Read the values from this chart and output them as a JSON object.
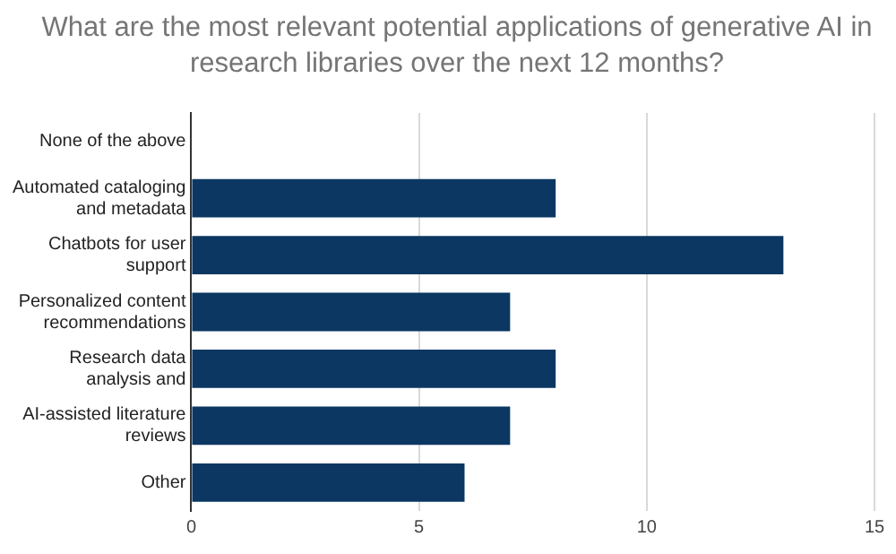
{
  "chart_data": {
    "type": "bar",
    "orientation": "horizontal",
    "title": "What are the most relevant potential applications of generative AI in research libraries over the next 12 months?",
    "categories": [
      "None of the above",
      "Automated cataloging\nand metadata",
      "Chatbots for user\nsupport",
      "Personalized content\nrecommendations",
      "Research data\nanalysis and",
      "AI-assisted literature\nreviews",
      "Other"
    ],
    "values": [
      0,
      8,
      13,
      7,
      8,
      7,
      6
    ],
    "color": "#0b3762",
    "xlim": [
      0,
      15
    ],
    "xticks": [
      0,
      5,
      10,
      15
    ],
    "grid": "x"
  }
}
